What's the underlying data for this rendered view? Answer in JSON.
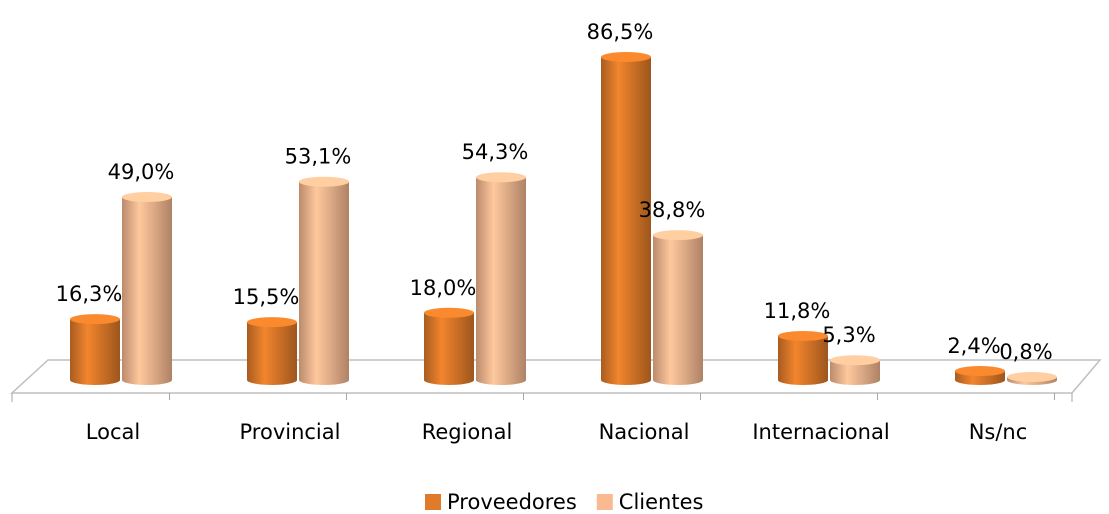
{
  "chart_data": {
    "type": "bar3d",
    "categories": [
      "Local",
      "Provincial",
      "Regional",
      "Nacional",
      "Internacional",
      "Ns/nc"
    ],
    "series": [
      {
        "name": "Proveedores",
        "color": "#e07b2a",
        "values": [
          16.3,
          15.5,
          18.0,
          86.5,
          11.8,
          2.4
        ],
        "value_labels": [
          "16,3%",
          "15,5%",
          "18,0%",
          "86,5%",
          "11,8%",
          "2,4%"
        ]
      },
      {
        "name": "Clientes",
        "color": "#f9b991",
        "values": [
          49.0,
          53.1,
          54.3,
          38.8,
          5.3,
          0.8
        ],
        "value_labels": [
          "49,0%",
          "53,1%",
          "54,3%",
          "38,8%",
          "5,3%",
          "0,8%"
        ]
      }
    ],
    "legend": "bottom"
  }
}
